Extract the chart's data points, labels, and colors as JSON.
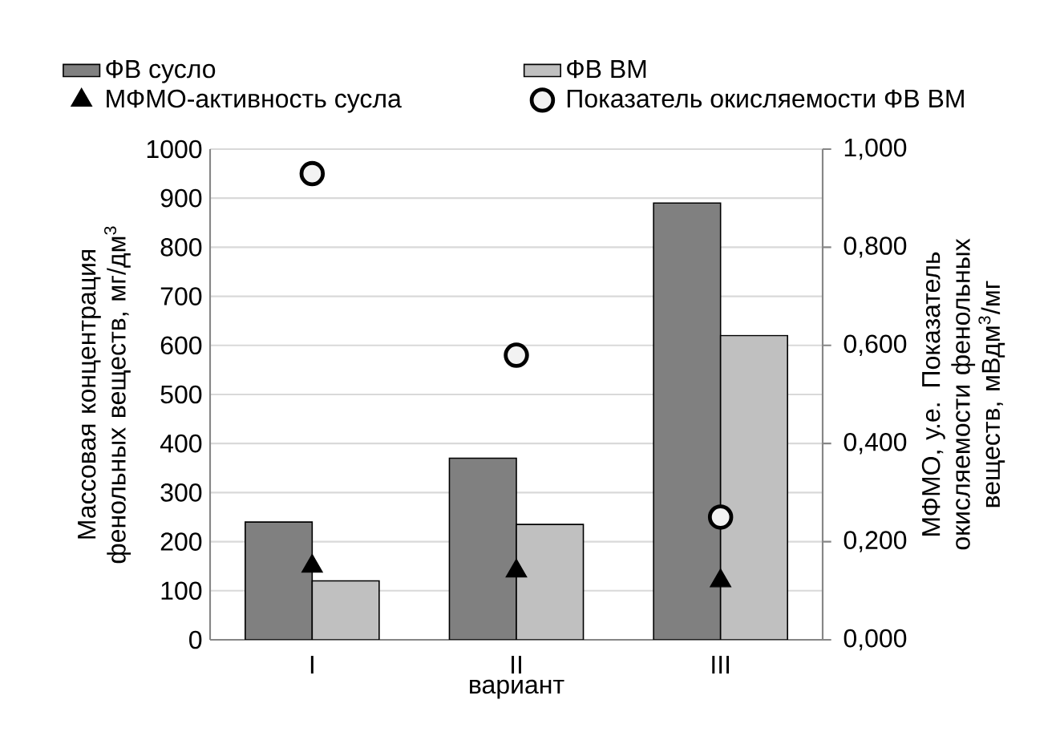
{
  "chart_data": {
    "type": "bar",
    "xlabel": "вариант",
    "ylabel": "Массовая концентрация фенольных веществ, мг/дм$^{3}$",
    "y2label": "МФМО, у.е. Показатель окисляемости фенольных веществ, мВдм$^{3}$/мг",
    "categories": [
      "I",
      "II",
      "III"
    ],
    "series": [
      {
        "name": "ФВ сусло",
        "color": "#808080",
        "values": [
          240,
          370,
          890
        ]
      },
      {
        "name": "ФВ ВМ",
        "color": "#c0c0c0",
        "values": [
          120,
          235,
          620
        ]
      },
      {
        "name": "МФМО-активность сусла",
        "type": "scatter",
        "axis": "y2",
        "marker": "triangle",
        "color": "#000000",
        "values": [
          0.15,
          0.14,
          0.12
        ]
      },
      {
        "name": "Показатель окисляемости ФВ ВМ",
        "type": "scatter",
        "axis": "y2",
        "marker": "circle",
        "color": "#f2f2f2",
        "values": [
          0.95,
          0.58,
          0.25
        ]
      }
    ],
    "ylim": [
      0,
      1000
    ],
    "yticks": [
      0,
      100,
      200,
      300,
      400,
      500,
      600,
      700,
      800,
      900,
      1000
    ],
    "y2lim": [
      0,
      1
    ],
    "y2ticks": [
      {
        "value": 0,
        "label": "0,000"
      },
      {
        "value": 0.2,
        "label": "0,200"
      },
      {
        "value": 0.4,
        "label": "0,400"
      },
      {
        "value": 0.6,
        "label": "0,600"
      },
      {
        "value": 0.8,
        "label": "0,800"
      },
      {
        "value": 1,
        "label": "1,000"
      }
    ],
    "grid": "y",
    "legend": "top"
  }
}
